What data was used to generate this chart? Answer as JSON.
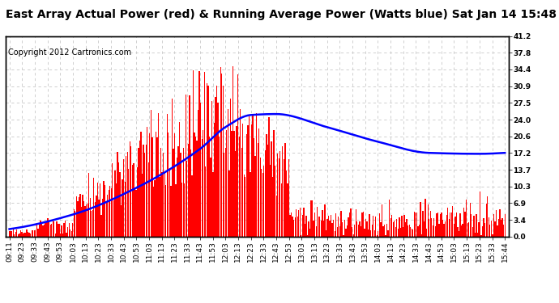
{
  "title": "East Array Actual Power (red) & Running Average Power (Watts blue) Sat Jan 14 15:48",
  "copyright": "Copyright 2012 Cartronics.com",
  "ylabel_right": [
    "41.2",
    "37.8",
    "34.4",
    "30.9",
    "27.5",
    "24.0",
    "20.6",
    "17.2",
    "13.7",
    "10.3",
    "6.9",
    "3.4",
    "0.0"
  ],
  "ymax": 41.2,
  "ymin": 0.0,
  "yticks": [
    41.2,
    37.8,
    34.4,
    30.9,
    27.5,
    24.0,
    20.6,
    17.2,
    13.7,
    10.3,
    6.9,
    3.4,
    0.0
  ],
  "background_color": "#ffffff",
  "bar_color": "#ff0000",
  "line_color": "#0000ff",
  "grid_color": "#c8c8c8",
  "title_fontsize": 10,
  "copyright_fontsize": 7,
  "tick_label_fontsize": 6.5,
  "n_points": 400,
  "x_labels": [
    "09:11",
    "09:23",
    "09:33",
    "09:43",
    "09:53",
    "10:03",
    "10:13",
    "10:23",
    "10:33",
    "10:43",
    "10:53",
    "11:03",
    "11:13",
    "11:23",
    "11:33",
    "11:43",
    "11:53",
    "12:03",
    "12:13",
    "12:23",
    "12:33",
    "12:43",
    "12:53",
    "13:03",
    "13:13",
    "13:23",
    "13:33",
    "13:43",
    "13:53",
    "14:03",
    "14:13",
    "14:23",
    "14:33",
    "14:43",
    "14:53",
    "15:03",
    "15:13",
    "15:23",
    "15:33",
    "15:44"
  ],
  "avg_line_x": [
    0,
    5,
    10,
    15,
    17,
    19,
    21,
    25,
    29,
    33,
    37,
    39
  ],
  "avg_line_y": [
    1.5,
    4.5,
    10.0,
    18.0,
    22.5,
    25.0,
    25.2,
    22.5,
    19.5,
    17.2,
    17.0,
    17.2
  ]
}
